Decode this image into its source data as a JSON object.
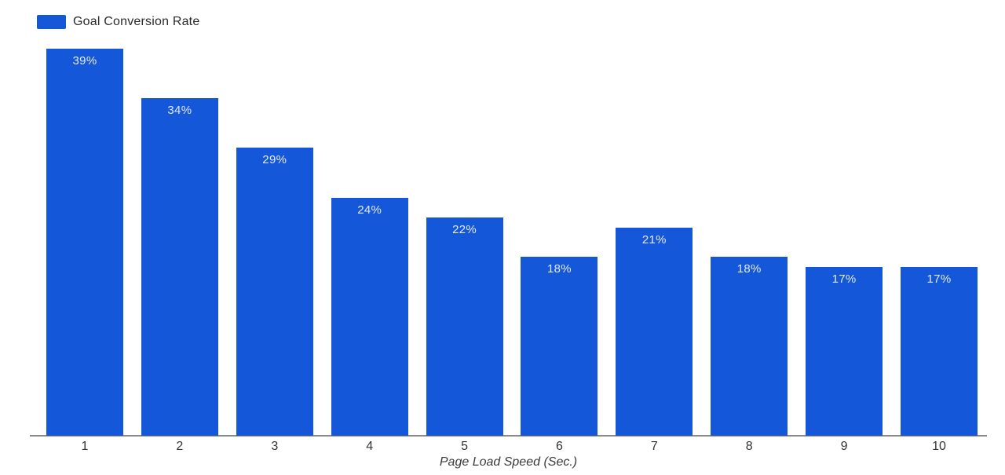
{
  "chart_data": {
    "type": "bar",
    "title": "",
    "legend": "Goal Conversion Rate",
    "categories": [
      "1",
      "2",
      "3",
      "4",
      "5",
      "6",
      "7",
      "8",
      "9",
      "10"
    ],
    "values": [
      39,
      34,
      29,
      24,
      22,
      18,
      21,
      18,
      17,
      17
    ],
    "value_labels": [
      "39%",
      "34%",
      "29%",
      "24%",
      "22%",
      "18%",
      "21%",
      "18%",
      "17%",
      "17%"
    ],
    "xlabel": "Page Load Speed (Sec.)",
    "ylabel": "",
    "ylim": [
      0,
      39
    ],
    "grid": false,
    "legend_position": "top-left",
    "bar_color": "#1557D9",
    "bar_label_color": "rgba(255,255,255,0.88)",
    "axis_line_color": "#8a8a8a",
    "tick_label_color": "#333333",
    "legend_text_color": "#2b2b2b"
  }
}
